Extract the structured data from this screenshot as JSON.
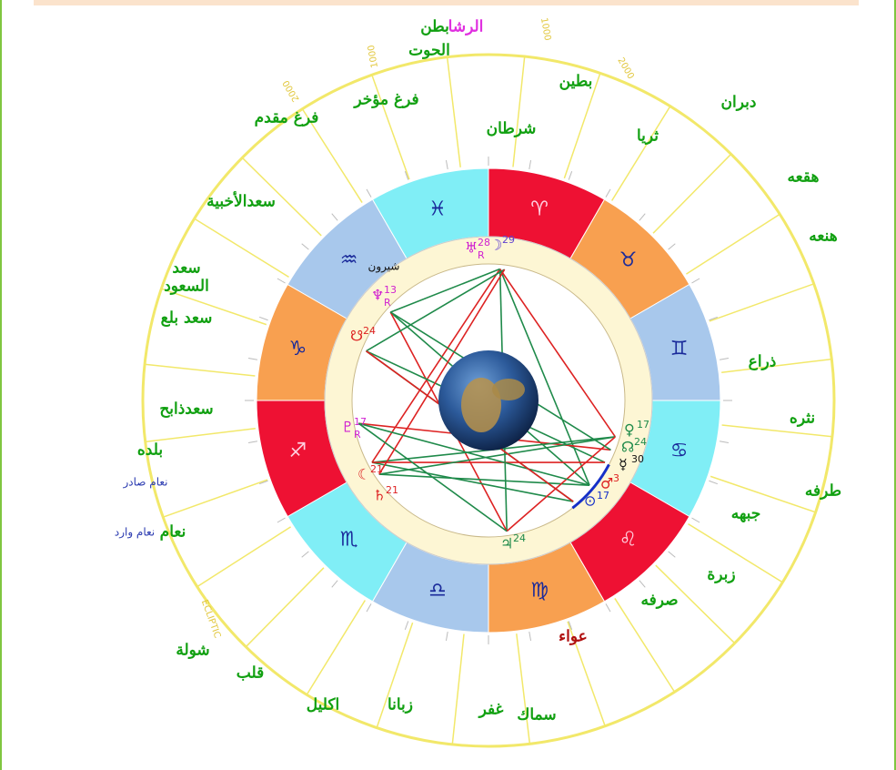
{
  "zodiac": [
    "♓",
    "♈",
    "♉",
    "♊",
    "♋",
    "♌",
    "♍",
    "♎",
    "♏",
    "♐",
    "♑",
    "♒"
  ],
  "mansions": [
    "بطن",
    "الحوت",
    "الرشا",
    "بطين",
    "دبران",
    "ثريا",
    "هقعه",
    "هنعه",
    "ذراع",
    "نثره",
    "طرفه",
    "جبهه",
    "زبرة",
    "صرفه",
    "عواء",
    "سماك",
    "غفر",
    "زبانا",
    "اكليل",
    "قلب",
    "شولة",
    "نعام",
    "نعام وارد",
    "نعام صادر",
    "بلده",
    "سعدذابح",
    "سعد بلع",
    "سعد",
    "السعود",
    "سعدالأخبية",
    "فرغ مقدم",
    "فرغ مؤخر",
    "شرطان"
  ],
  "star": "شيرون",
  "ecliptic_labels": [
    "1000",
    "2000",
    "1000",
    "2000",
    "ECLIPTIC"
  ],
  "planets": [
    {
      "glyph": "♅",
      "degree": "28",
      "retro": "R"
    },
    {
      "glyph": "☽",
      "degree": "29"
    },
    {
      "glyph": "♆",
      "degree": "13",
      "retro": "R"
    },
    {
      "glyph": "☋",
      "degree": "24"
    },
    {
      "glyph": "♇",
      "degree": "17",
      "retro": "R"
    },
    {
      "glyph": "☾",
      "degree": "21"
    },
    {
      "glyph": "♄",
      "degree": "21"
    },
    {
      "glyph": "♃",
      "degree": "24"
    },
    {
      "glyph": "⊙",
      "degree": "17"
    },
    {
      "glyph": "♂",
      "degree": "3"
    },
    {
      "glyph": "☿",
      "degree": "30"
    },
    {
      "glyph": "☊",
      "degree": "24"
    },
    {
      "glyph": "♀",
      "degree": "17"
    }
  ]
}
